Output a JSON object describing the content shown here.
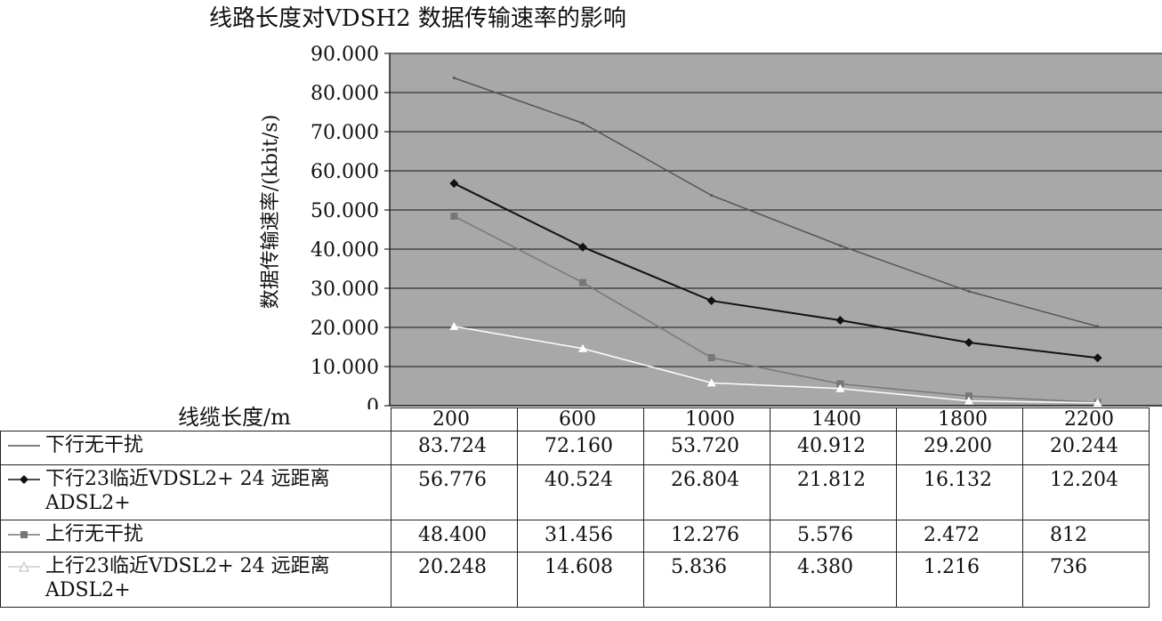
{
  "chart_data": {
    "type": "line",
    "title": "线路长度对VDSH2 数据传输速率的影响",
    "xlabel": "线缆长度/m",
    "ylabel": "数据传输速率/(kbit/s)",
    "ylim": [
      0,
      90000
    ],
    "yticks": [
      "0",
      "10.000",
      "20.000",
      "30.000",
      "40.000",
      "50.000",
      "60.000",
      "70.000",
      "80.000",
      "90.000"
    ],
    "categories": [
      "200",
      "600",
      "1000",
      "1400",
      "1800",
      "2200"
    ],
    "grid": true,
    "legend": "data-table",
    "series": [
      {
        "name": "下行无干扰",
        "color": "#555555",
        "marker": "none",
        "values": [
          83724,
          72160,
          53720,
          40912,
          29200,
          20244
        ],
        "labels": [
          "83.724",
          "72.160",
          "53.720",
          "40.912",
          "29.200",
          "20.244"
        ]
      },
      {
        "name": "下行23临近VDSL2+ 24 远距离ADSL2+",
        "color": "#111111",
        "marker": "diamond",
        "values": [
          56776,
          40524,
          26804,
          21812,
          16132,
          12204
        ],
        "labels": [
          "56.776",
          "40.524",
          "26.804",
          "21.812",
          "16.132",
          "12.204"
        ]
      },
      {
        "name": "上行无干扰",
        "color": "#777777",
        "marker": "square",
        "values": [
          48400,
          31456,
          12276,
          5576,
          2472,
          812
        ],
        "labels": [
          "48.400",
          "31.456",
          "12.276",
          "5.576",
          "2.472",
          "812"
        ]
      },
      {
        "name": "上行23临近VDSL2+ 24 远距离ADSL2+",
        "color": "#ffffff",
        "marker": "triangle",
        "values": [
          20248,
          14608,
          5836,
          4380,
          1216,
          736
        ],
        "labels": [
          "20.248",
          "14.608",
          "5.836",
          "4.380",
          "1.216",
          "736"
        ]
      }
    ]
  }
}
